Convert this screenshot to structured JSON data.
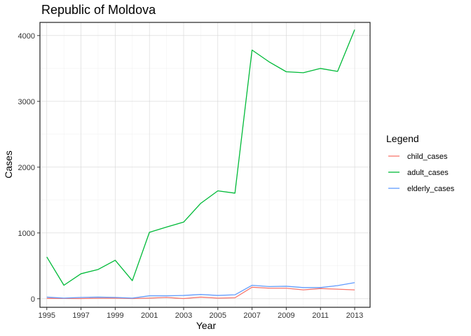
{
  "chart_data": {
    "type": "line",
    "title": "Republic of Moldova",
    "xlabel": "Year",
    "ylabel": "Cases",
    "x": [
      1995,
      1996,
      1997,
      1998,
      1999,
      2000,
      2001,
      2002,
      2003,
      2004,
      2005,
      2006,
      2007,
      2008,
      2009,
      2010,
      2011,
      2012,
      2013
    ],
    "xlim": [
      1994.6,
      2013.9
    ],
    "ylim": [
      -130,
      4200
    ],
    "x_ticks": [
      "1995",
      "1997",
      "1999",
      "2001",
      "2003",
      "2005",
      "2007",
      "2009",
      "2011",
      "2013"
    ],
    "y_ticks": [
      "0",
      "1000",
      "2000",
      "3000",
      "4000"
    ],
    "grid": true,
    "legend": {
      "title": "Legend",
      "position": "right"
    },
    "series": [
      {
        "name": "child_cases",
        "color": "#F8766D",
        "values": [
          5,
          5,
          3,
          8,
          10,
          3,
          10,
          20,
          3,
          25,
          10,
          15,
          175,
          160,
          160,
          135,
          155,
          145,
          135
        ]
      },
      {
        "name": "adult_cases",
        "color": "#00BA38",
        "values": [
          635,
          205,
          380,
          445,
          585,
          275,
          1010,
          1090,
          1165,
          1450,
          1640,
          1605,
          3780,
          3600,
          3450,
          3435,
          3500,
          3455,
          4090
        ]
      },
      {
        "name": "elderly_cases",
        "color": "#619CFF",
        "values": [
          25,
          10,
          20,
          25,
          20,
          10,
          45,
          45,
          50,
          65,
          50,
          60,
          205,
          185,
          190,
          170,
          170,
          200,
          245
        ]
      }
    ]
  }
}
